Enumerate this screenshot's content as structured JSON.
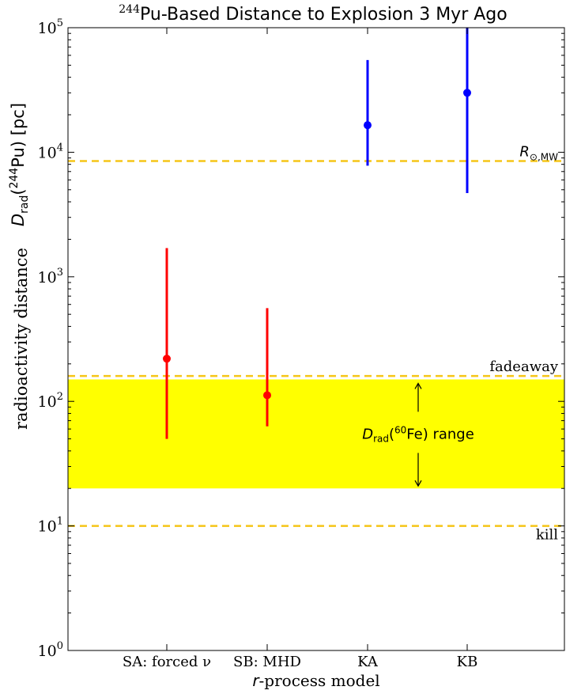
{
  "chart_data": {
    "type": "scatter",
    "title_sup": "244",
    "title_rest": "Pu-Based Distance to Explosion 3 Myr Ago",
    "xlabel_italic": "r",
    "xlabel_rest": "-process model",
    "ylabel_line1": "radioactivity distance",
    "ylabel_line2_parts": {
      "D": "D",
      "sub": "rad",
      "open": "(",
      "sup": "244",
      "iso": "Pu) [pc]"
    },
    "y_scale": "log",
    "ylim": [
      1,
      100000
    ],
    "y_ticks": [
      {
        "value": 1,
        "base": "10",
        "exp": "0"
      },
      {
        "value": 10,
        "base": "10",
        "exp": "1"
      },
      {
        "value": 100,
        "base": "10",
        "exp": "2"
      },
      {
        "value": 1000,
        "base": "10",
        "exp": "3"
      },
      {
        "value": 10000,
        "base": "10",
        "exp": "4"
      },
      {
        "value": 100000,
        "base": "10",
        "exp": "5"
      }
    ],
    "categories": [
      "SA: forced ν",
      "SB: MHD",
      "KA",
      "KB"
    ],
    "points": [
      {
        "category": "SA: forced ν",
        "y": 220,
        "y_low": 50,
        "y_high": 1700,
        "color": "#ff0000"
      },
      {
        "category": "SB: MHD",
        "y": 112,
        "y_low": 63,
        "y_high": 560,
        "color": "#ff0000"
      },
      {
        "category": "KA",
        "y": 16500,
        "y_low": 7800,
        "y_high": 55000,
        "color": "#0000ff"
      },
      {
        "category": "KB",
        "y": 30000,
        "y_low": 4700,
        "y_high": 100000,
        "color": "#0000ff"
      }
    ],
    "hlines": [
      {
        "y": 8500,
        "label_main": "R",
        "label_sub": "⊙,MW",
        "color": "#f5c518"
      },
      {
        "y": 160,
        "label": "fadeaway",
        "color": "#f5c518"
      },
      {
        "y": 10,
        "label": "kill",
        "color": "#f5c518"
      }
    ],
    "band": {
      "y_low": 20,
      "y_high": 150,
      "color": "#ffff00",
      "label_D": "D",
      "label_sub": "rad",
      "label_open": "(",
      "label_sup": "60",
      "label_rest": "Fe) range"
    }
  }
}
